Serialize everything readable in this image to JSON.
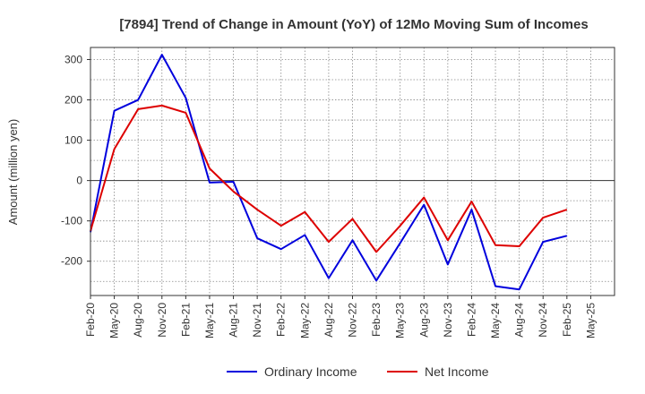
{
  "chart_data": {
    "type": "line",
    "title": "[7894]  Trend of Change in Amount (YoY) of 12Mo Moving Sum of Incomes",
    "ylabel": "Amount (million yen)",
    "xlabel": "",
    "ylim": [
      -285,
      330
    ],
    "yticks": [
      300,
      200,
      100,
      0,
      -100,
      -200
    ],
    "x": [
      "Feb-20",
      "May-20",
      "Aug-20",
      "Nov-20",
      "Feb-21",
      "May-21",
      "Aug-21",
      "Nov-21",
      "Feb-22",
      "May-22",
      "Aug-22",
      "Nov-22",
      "Feb-23",
      "May-23",
      "Aug-23",
      "Nov-23",
      "Feb-24",
      "May-24",
      "Aug-24",
      "Nov-24",
      "Feb-25",
      "May-25"
    ],
    "series": [
      {
        "name": "Ordinary Income",
        "color": "#0000dd",
        "values": [
          -128,
          173,
          200,
          312,
          205,
          -5,
          -3,
          -143,
          -170,
          -135,
          -242,
          -148,
          -248,
          -155,
          -60,
          -208,
          -72,
          -262,
          -270,
          -152,
          -137,
          null
        ]
      },
      {
        "name": "Net Income",
        "color": "#dd0000",
        "values": [
          -125,
          78,
          177,
          186,
          168,
          30,
          -27,
          -72,
          -112,
          -78,
          -152,
          -95,
          -177,
          -112,
          -42,
          -148,
          -52,
          -160,
          -163,
          -92,
          -72,
          null
        ]
      }
    ],
    "grid": true,
    "legend": "bottom-center"
  }
}
